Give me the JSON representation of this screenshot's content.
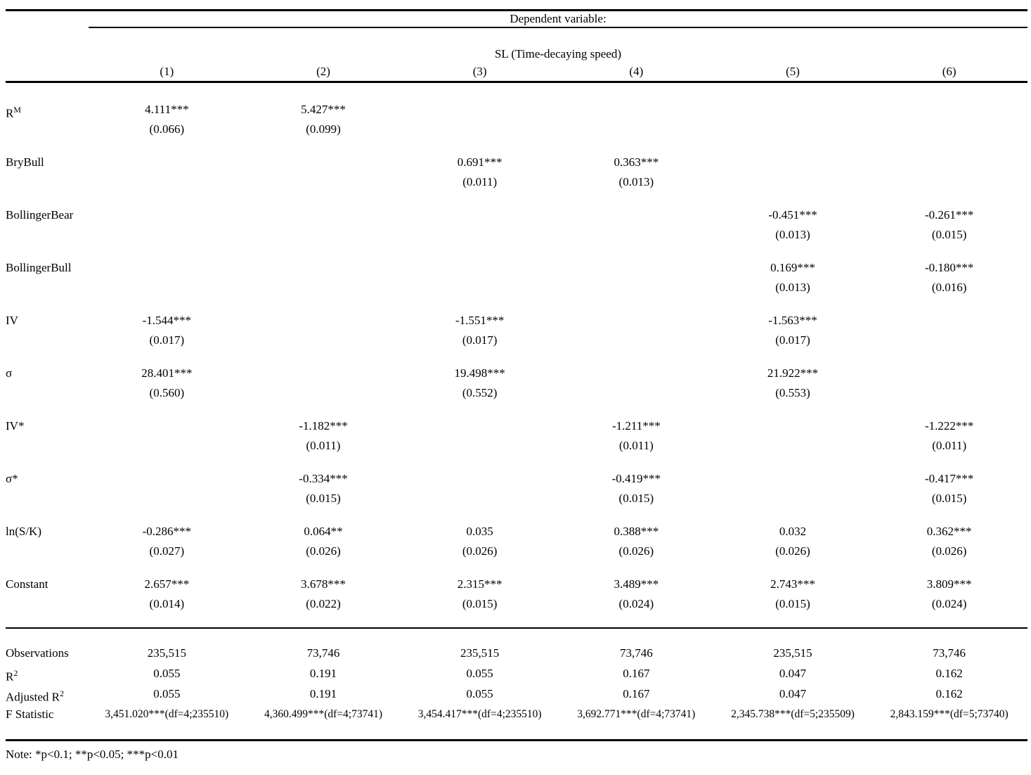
{
  "header": {
    "dependent_variable_label": "Dependent variable:",
    "dv_name": "SL (Time-decaying speed)",
    "columns": [
      "(1)",
      "(2)",
      "(3)",
      "(4)",
      "(5)",
      "(6)"
    ]
  },
  "rows": [
    {
      "label": "R",
      "label_sup": "M",
      "cells": [
        {
          "coef": "4.111***",
          "se": "(0.066)"
        },
        {
          "coef": "5.427***",
          "se": "(0.099)"
        },
        null,
        null,
        null,
        null
      ]
    },
    {
      "label": "BryBull",
      "label_sup": "",
      "cells": [
        null,
        null,
        {
          "coef": "0.691***",
          "se": "(0.011)"
        },
        {
          "coef": "0.363***",
          "se": "(0.013)"
        },
        null,
        null
      ]
    },
    {
      "label": "BollingerBear",
      "label_sup": "",
      "cells": [
        null,
        null,
        null,
        null,
        {
          "coef": "-0.451***",
          "se": "(0.013)"
        },
        {
          "coef": "-0.261***",
          "se": "(0.015)"
        }
      ]
    },
    {
      "label": "BollingerBull",
      "label_sup": "",
      "cells": [
        null,
        null,
        null,
        null,
        {
          "coef": "0.169***",
          "se": "(0.013)"
        },
        {
          "coef": "-0.180***",
          "se": "(0.016)"
        }
      ]
    },
    {
      "label": "IV",
      "label_sup": "",
      "cells": [
        {
          "coef": "-1.544***",
          "se": "(0.017)"
        },
        null,
        {
          "coef": "-1.551***",
          "se": "(0.017)"
        },
        null,
        {
          "coef": "-1.563***",
          "se": "(0.017)"
        },
        null
      ]
    },
    {
      "label": "σ",
      "label_sup": "",
      "cells": [
        {
          "coef": "28.401***",
          "se": "(0.560)"
        },
        null,
        {
          "coef": "19.498***",
          "se": "(0.552)"
        },
        null,
        {
          "coef": "21.922***",
          "se": "(0.553)"
        },
        null
      ]
    },
    {
      "label": "IV*",
      "label_sup": "",
      "cells": [
        null,
        {
          "coef": "-1.182***",
          "se": "(0.011)"
        },
        null,
        {
          "coef": "-1.211***",
          "se": "(0.011)"
        },
        null,
        {
          "coef": "-1.222***",
          "se": "(0.011)"
        }
      ]
    },
    {
      "label": "σ*",
      "label_sup": "",
      "cells": [
        null,
        {
          "coef": "-0.334***",
          "se": "(0.015)"
        },
        null,
        {
          "coef": "-0.419***",
          "se": "(0.015)"
        },
        null,
        {
          "coef": "-0.417***",
          "se": "(0.015)"
        }
      ]
    },
    {
      "label": "ln(S/K)",
      "label_sup": "",
      "cells": [
        {
          "coef": "-0.286***",
          "se": "(0.027)"
        },
        {
          "coef": "0.064**",
          "se": "(0.026)"
        },
        {
          "coef": "0.035",
          "se": "(0.026)"
        },
        {
          "coef": "0.388***",
          "se": "(0.026)"
        },
        {
          "coef": "0.032",
          "se": "(0.026)"
        },
        {
          "coef": "0.362***",
          "se": "(0.026)"
        }
      ]
    },
    {
      "label": "Constant",
      "label_sup": "",
      "cells": [
        {
          "coef": "2.657***",
          "se": "(0.014)"
        },
        {
          "coef": "3.678***",
          "se": "(0.022)"
        },
        {
          "coef": "2.315***",
          "se": "(0.015)"
        },
        {
          "coef": "3.489***",
          "se": "(0.024)"
        },
        {
          "coef": "2.743***",
          "se": "(0.015)"
        },
        {
          "coef": "3.809***",
          "se": "(0.024)"
        }
      ]
    }
  ],
  "stats": [
    {
      "label": "Observations",
      "label_sup": "",
      "values": [
        "235,515",
        "73,746",
        "235,515",
        "73,746",
        "235,515",
        "73,746"
      ]
    },
    {
      "label": "R",
      "label_sup": "2",
      "values": [
        "0.055",
        "0.191",
        "0.055",
        "0.167",
        "0.047",
        "0.162"
      ]
    },
    {
      "label": "Adjusted R",
      "label_sup": "2",
      "values": [
        "0.055",
        "0.191",
        "0.055",
        "0.167",
        "0.047",
        "0.162"
      ]
    },
    {
      "label": "F Statistic",
      "label_sup": "",
      "values": [
        "3,451.020***(df=4;235510)",
        "4,360.499***(df=4;73741)",
        "3,454.417***(df=4;235510)",
        "3,692.771***(df=4;73741)",
        "2,345.738***(df=5;235509)",
        "2,843.159***(df=5;73740)"
      ]
    }
  ],
  "note": "Note: *p<0.1; **p<0.05; ***p<0.01"
}
